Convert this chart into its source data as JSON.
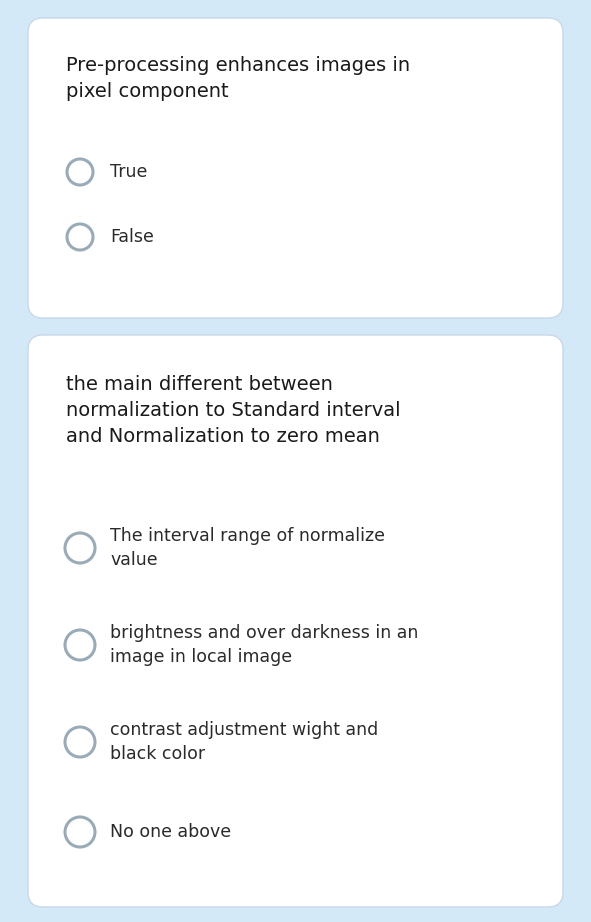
{
  "background_color": "#d4e9f7",
  "card_bg": "#ffffff",
  "text_color": "#1a1a1a",
  "option_text_color": "#2a2a2a",
  "q1_title": "Pre-processing enhances images in\npixel component",
  "q1_options": [
    "True",
    "False"
  ],
  "q2_title": "the main different between\nnormalization to Standard interval\nand Normalization to zero mean",
  "q2_options": [
    "The interval range of normalize\nvalue",
    "brightness and over darkness in an\nimage in local image",
    "contrast adjustment wight and\nblack color",
    "No one above"
  ],
  "title_fontsize": 14,
  "option_fontsize": 12.5,
  "figwidth": 5.91,
  "figheight": 9.22,
  "dpi": 100
}
